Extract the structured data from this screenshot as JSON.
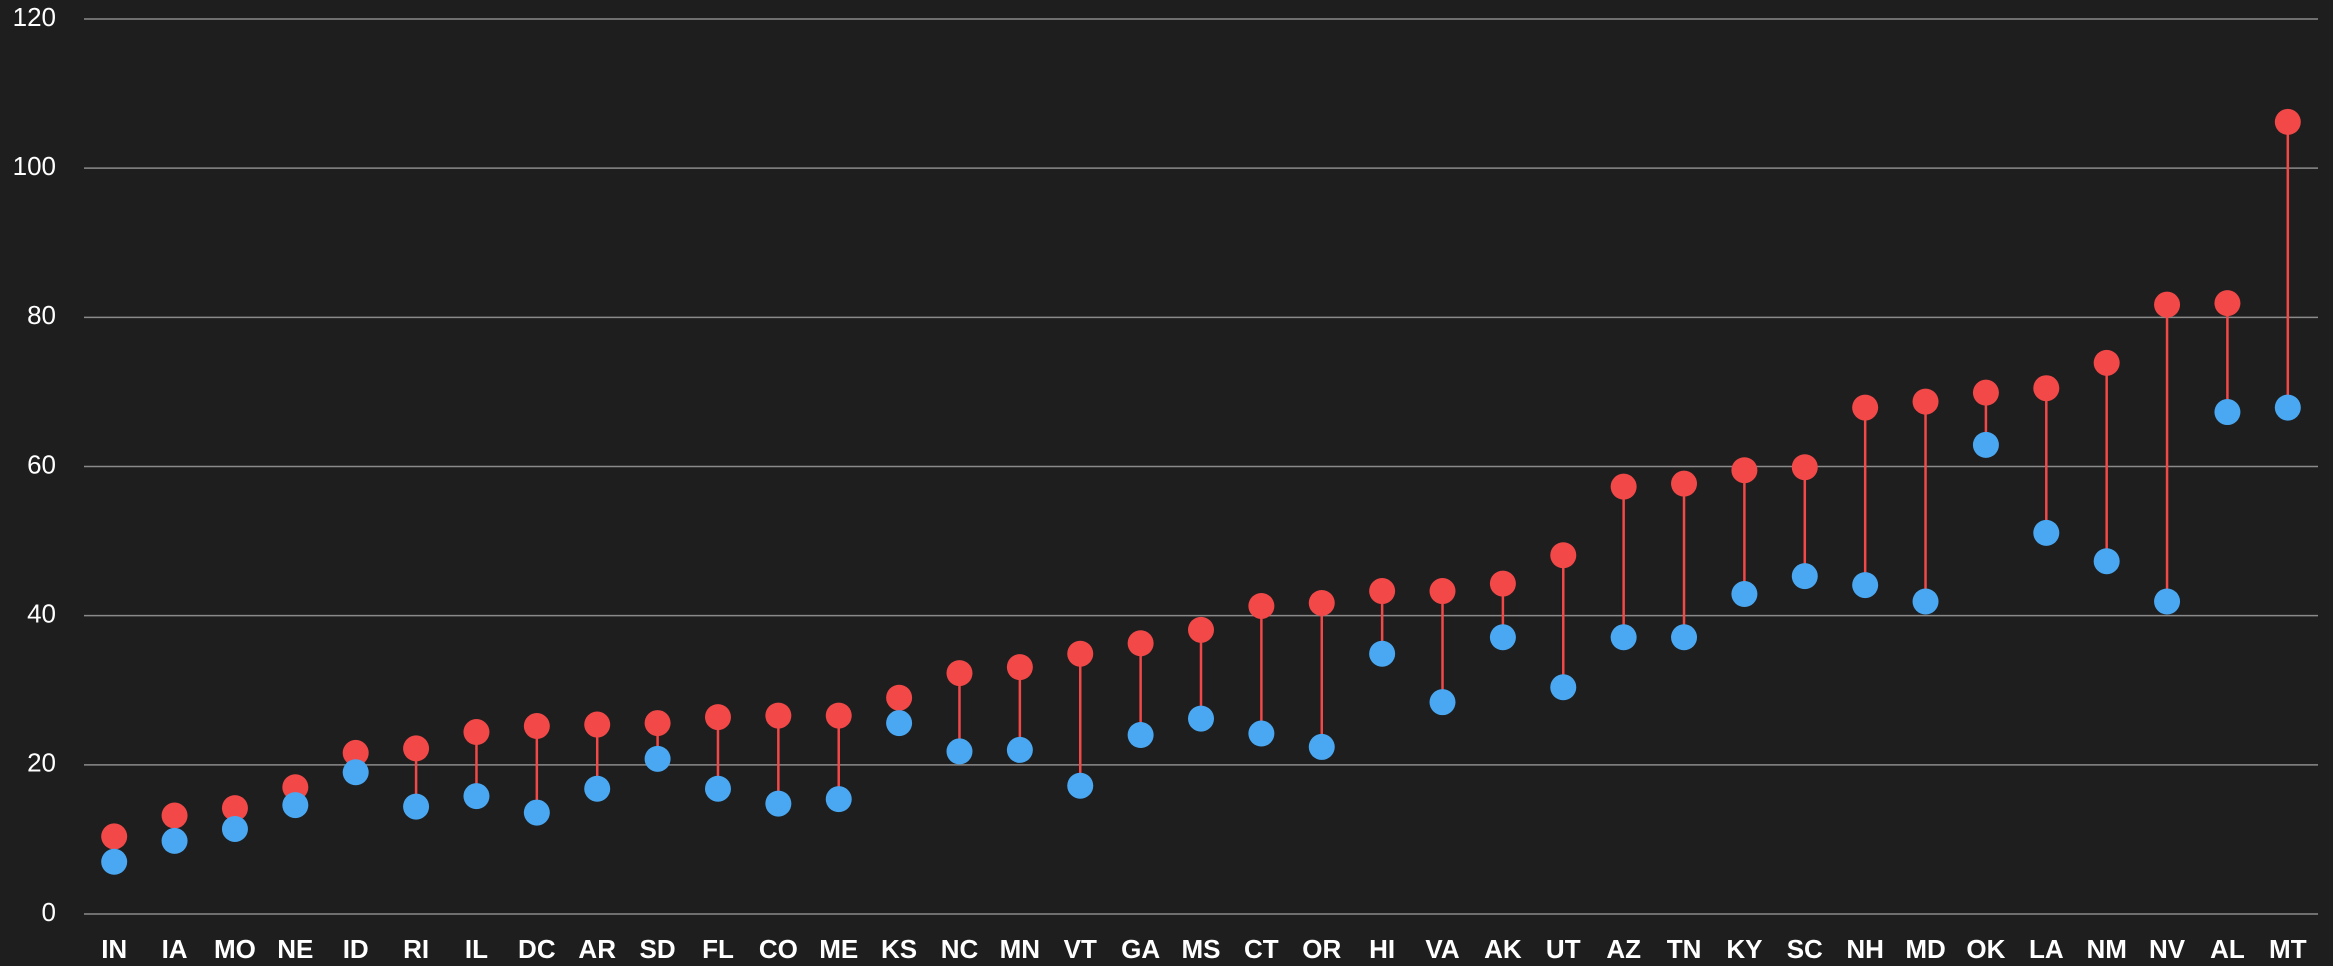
{
  "chart_data": {
    "type": "dumbbell",
    "categories": [
      "IN",
      "IA",
      "MO",
      "NE",
      "ID",
      "RI",
      "IL",
      "DC",
      "AR",
      "SD",
      "FL",
      "CO",
      "ME",
      "KS",
      "NC",
      "MN",
      "VT",
      "GA",
      "MS",
      "CT",
      "OR",
      "HI",
      "VA",
      "AK",
      "UT",
      "AZ",
      "TN",
      "KY",
      "SC",
      "NH",
      "MD",
      "OK",
      "LA",
      "NM",
      "NV",
      "AL",
      "MT"
    ],
    "series": [
      {
        "color": "#f24848",
        "values": [
          10.4,
          13.2,
          14.2,
          17.0,
          21.6,
          22.2,
          24.4,
          25.2,
          25.4,
          25.6,
          26.4,
          26.6,
          26.6,
          29.0,
          32.3,
          33.1,
          34.9,
          36.3,
          38.1,
          41.3,
          41.7,
          43.3,
          43.3,
          44.3,
          48.1,
          57.3,
          57.7,
          59.5,
          59.9,
          67.9,
          68.7,
          69.9,
          70.5,
          73.9,
          81.7,
          81.9,
          106.2
        ]
      },
      {
        "color": "#4aa8f2",
        "values": [
          7.0,
          9.8,
          11.4,
          14.6,
          19.0,
          14.4,
          15.8,
          13.6,
          16.8,
          20.8,
          16.8,
          14.8,
          15.4,
          25.6,
          21.8,
          22.0,
          17.2,
          24.0,
          26.2,
          24.2,
          22.4,
          34.9,
          28.4,
          37.1,
          30.4,
          37.1,
          37.1,
          42.9,
          45.3,
          44.1,
          41.9,
          62.9,
          51.1,
          47.3,
          41.9,
          67.3,
          67.9
        ]
      }
    ],
    "ylim": [
      0,
      120
    ],
    "yticks": [
      0,
      20,
      40,
      60,
      80,
      100,
      120
    ],
    "grid": true
  }
}
